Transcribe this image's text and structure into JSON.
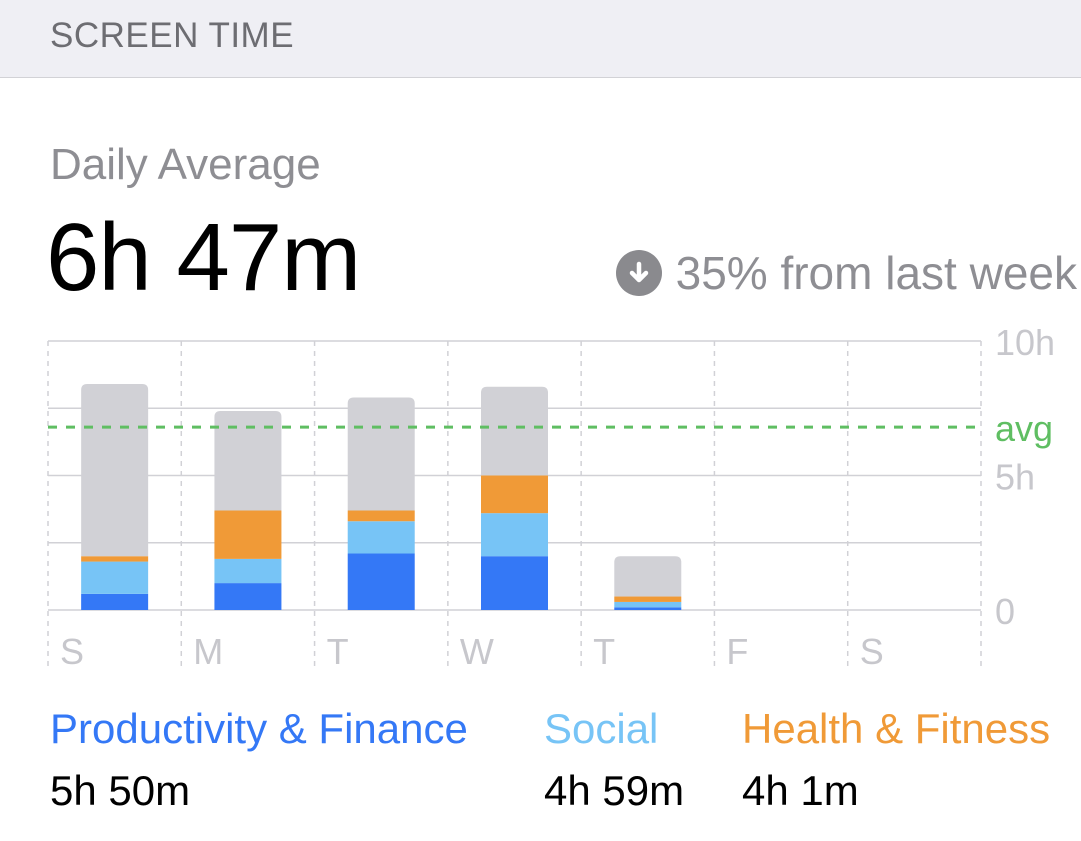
{
  "header": {
    "title": "SCREEN TIME"
  },
  "summary": {
    "label": "Daily Average",
    "value": "6h 47m",
    "trend_text": "35% from last week",
    "trend_icon": "arrow-down-circle-icon"
  },
  "colors": {
    "productivity": "#3478f6",
    "social": "#77c4f6",
    "health": "#f09a37",
    "other": "#d1d1d6",
    "avg_line": "#5fbe62",
    "grid": "#d1d1d6",
    "axis_text": "#c7c7cc"
  },
  "chart_data": {
    "type": "bar",
    "stacked": true,
    "categories": [
      "S",
      "M",
      "T",
      "W",
      "T",
      "F",
      "S"
    ],
    "series": [
      {
        "name": "Productivity & Finance",
        "values": [
          0.6,
          1.0,
          2.1,
          2.0,
          0.1,
          0,
          0
        ]
      },
      {
        "name": "Social",
        "values": [
          1.2,
          0.9,
          1.2,
          1.6,
          0.2,
          0,
          0
        ]
      },
      {
        "name": "Health & Fitness",
        "values": [
          0.2,
          1.8,
          0.4,
          1.4,
          0.2,
          0,
          0
        ]
      },
      {
        "values": [
          6.4,
          3.7,
          4.2,
          3.3,
          1.5,
          0,
          0
        ]
      }
    ],
    "ylim": [
      0,
      10
    ],
    "y_ticks": [
      "10h",
      "5h",
      "0"
    ],
    "average": 6.8,
    "average_label": "avg",
    "grid": true
  },
  "legend": [
    {
      "label": "Productivity & Finance",
      "value": "5h 50m"
    },
    {
      "label": "Social",
      "value": "4h 59m"
    },
    {
      "label": "Health & Fitness",
      "value": "4h 1m"
    }
  ]
}
